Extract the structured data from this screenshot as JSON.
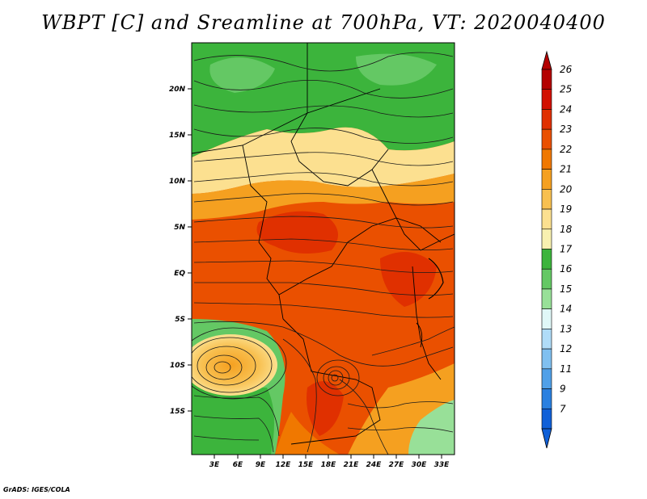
{
  "title": "WBPT [C] and Sreamline at 700hPa, VT: 2020040400",
  "credit": "GrADS: IGES/COLA",
  "map": {
    "lat_labels": [
      "20N",
      "15N",
      "10N",
      "5N",
      "EQ",
      "5S",
      "10S",
      "15S"
    ],
    "lon_labels": [
      "3E",
      "6E",
      "9E",
      "12E",
      "15E",
      "18E",
      "21E",
      "24E",
      "27E",
      "30E",
      "33E"
    ],
    "extent": {
      "lon": [
        0,
        34.5
      ],
      "lat": [
        -20,
        24.5
      ]
    }
  },
  "colorbar": {
    "labels": [
      "26",
      "25",
      "24",
      "23",
      "22",
      "21",
      "20",
      "19",
      "18",
      "17",
      "16",
      "15",
      "14",
      "13",
      "12",
      "11",
      "9",
      "7"
    ],
    "colors": [
      "#b40000",
      "#d21000",
      "#e03000",
      "#ea5000",
      "#f07800",
      "#f5a020",
      "#f8c050",
      "#fce090",
      "#f8f0b0",
      "#3cb43c",
      "#64c864",
      "#98e098",
      "#e0f8f8",
      "#b0dcf8",
      "#80c0f0",
      "#50a0e8",
      "#2a80e0",
      "#1060d8"
    ]
  }
}
